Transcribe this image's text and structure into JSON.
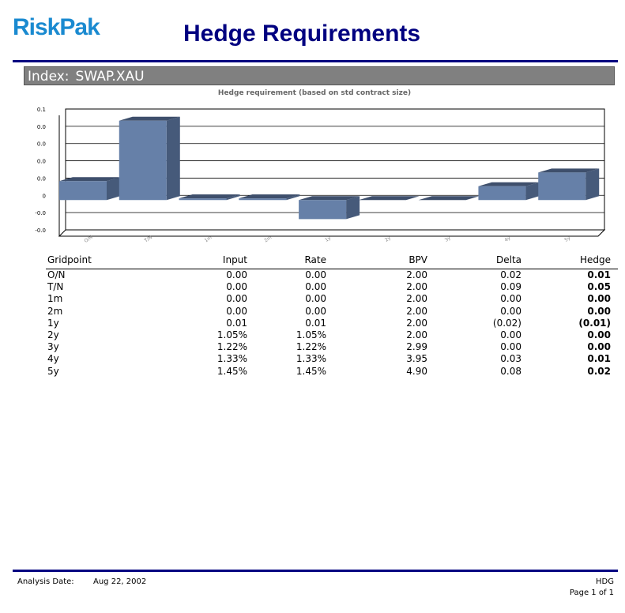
{
  "header": {
    "logo": "RiskPak",
    "title": "Hedge Requirements",
    "index_label": "Index:",
    "index_value": "SWAP.XAU"
  },
  "chart_data": {
    "type": "bar",
    "title": "Hedge requirement (based on std contract size)",
    "categories": [
      "O/N",
      "T/N",
      "1m",
      "2m",
      "1y",
      "2y",
      "3y",
      "4y",
      "5y"
    ],
    "values": [
      0.011,
      0.046,
      0.001,
      0.001,
      -0.011,
      0,
      0,
      0.008,
      0.016
    ],
    "color": "#6680a8",
    "ylim": [
      -0.02,
      0.05
    ],
    "yticks": [
      {
        "value": -0.02,
        "label": "-0.0"
      },
      {
        "value": -0.01,
        "label": "-0.0"
      },
      0,
      {
        "value": 0.01,
        "label": "0.0"
      },
      {
        "value": 0.02,
        "label": "0.0"
      },
      {
        "value": 0.03,
        "label": "0.0"
      },
      {
        "value": 0.04,
        "label": "0.0"
      },
      {
        "value": 0.05,
        "label": "0.1"
      }
    ],
    "grid": true
  },
  "table": {
    "headers": [
      "Gridpoint",
      "Input",
      "Rate",
      "BPV",
      "Delta",
      "Hedge"
    ],
    "rows": [
      [
        "O/N",
        "0.00",
        "0.00",
        "2.00",
        "0.02",
        "0.01"
      ],
      [
        "T/N",
        "0.00",
        "0.00",
        "2.00",
        "0.09",
        "0.05"
      ],
      [
        "1m",
        "0.00",
        "0.00",
        "2.00",
        "0.00",
        "0.00"
      ],
      [
        "2m",
        "0.00",
        "0.00",
        "2.00",
        "0.00",
        "0.00"
      ],
      [
        "1y",
        "0.01",
        "0.01",
        "2.00",
        "(0.02)",
        "(0.01)"
      ],
      [
        "2y",
        "1.05%",
        "1.05%",
        "2.00",
        "0.00",
        "0.00"
      ],
      [
        "3y",
        "1.22%",
        "1.22%",
        "2.99",
        "0.00",
        "0.00"
      ],
      [
        "4y",
        "1.33%",
        "1.33%",
        "3.95",
        "0.03",
        "0.01"
      ],
      [
        "5y",
        "1.45%",
        "1.45%",
        "4.90",
        "0.08",
        "0.02"
      ]
    ]
  },
  "footer": {
    "date_label": "Analysis Date:",
    "date": "Aug 22, 2002",
    "code": "HDG",
    "page": "Page 1 of 1"
  }
}
